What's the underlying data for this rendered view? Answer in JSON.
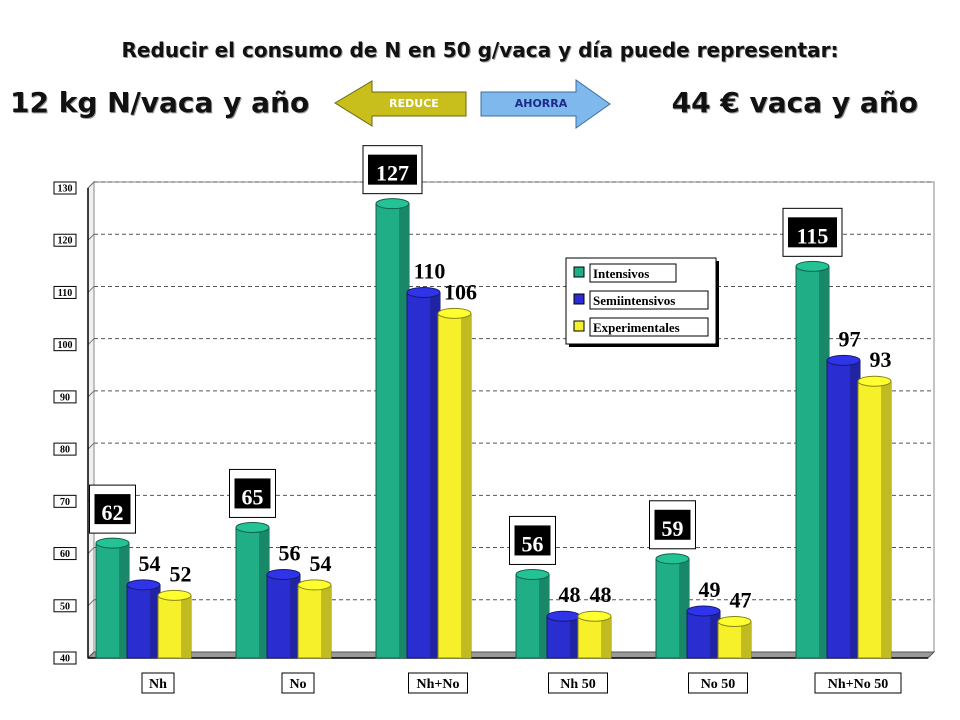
{
  "header": {
    "headline": "Reducir el consumo de N en 50 g/vaca y día puede representar:",
    "left_stat": "12 kg N/vaca y año",
    "right_stat": "44 € vaca y año",
    "reduce_label": "REDUCE",
    "ahorra_label": "AHORRA"
  },
  "colors": {
    "intensivos": "#1fae86",
    "semiintensivos": "#2a2ed0",
    "experimentales": "#f5f02a",
    "reduce_arrow": "#c8bf1c",
    "ahorra_arrow": "#7fb8ec"
  },
  "chart_data": {
    "type": "bar",
    "categories": [
      "Nh",
      "No",
      "Nh+No",
      "Nh 50",
      "No 50",
      "Nh+No 50"
    ],
    "series": [
      {
        "name": "Intensivos",
        "values": [
          62,
          65,
          127,
          56,
          59,
          115
        ]
      },
      {
        "name": "Semiintensivos",
        "values": [
          54,
          56,
          110,
          48,
          49,
          97
        ]
      },
      {
        "name": "Experimentales",
        "values": [
          52,
          54,
          106,
          48,
          47,
          93
        ]
      }
    ],
    "ylim": [
      40,
      130
    ],
    "yticks": [
      "40",
      "50",
      "60",
      "70",
      "80",
      "90",
      "100",
      "110",
      "120",
      "130"
    ],
    "legend": [
      "Intensivos",
      "Semiintensivos",
      "Experimentales"
    ],
    "legend_position": "top-right",
    "grid": true,
    "title": "",
    "xlabel": "",
    "ylabel": ""
  }
}
